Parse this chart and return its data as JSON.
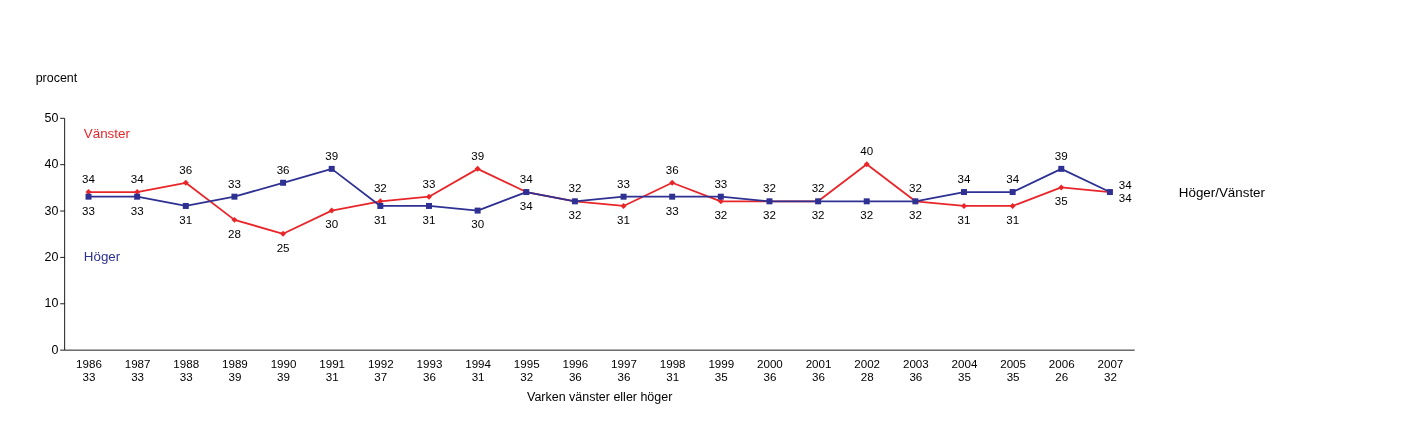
{
  "chart_data": {
    "type": "line",
    "ylabel": "procent",
    "xlabel": "Varken vänster eller höger",
    "categories": [
      "1986\n33",
      "1987\n33",
      "1988\n33",
      "1989\n39",
      "1990\n39",
      "1991\n31",
      "1992\n37",
      "1993\n36",
      "1994\n31",
      "1995\n32",
      "1996\n36",
      "1997\n36",
      "1998\n31",
      "1999\n35",
      "2000\n36",
      "2001\n36",
      "2002\n28",
      "2003\n36",
      "2004\n35",
      "2005\n35",
      "2006\n26",
      "2007\n32"
    ],
    "series": [
      {
        "name": "Vänster",
        "color": "#e8262a",
        "marker": "diamond",
        "values": [
          34,
          34,
          36,
          28,
          25,
          30,
          32,
          33,
          39,
          34,
          32,
          31,
          36,
          32,
          32,
          32,
          40,
          32,
          31,
          31,
          35,
          34
        ]
      },
      {
        "name": "Höger",
        "color": "#2e3192",
        "marker": "square",
        "values": [
          33,
          33,
          31,
          33,
          36,
          39,
          31,
          31,
          30,
          34,
          32,
          33,
          33,
          33,
          32,
          32,
          32,
          32,
          34,
          34,
          39,
          34
        ]
      }
    ],
    "annotations": [
      "Höger/Vänster"
    ],
    "ylim": [
      0,
      50
    ],
    "yticks": [
      0,
      10,
      20,
      30,
      40,
      50
    ],
    "data_labels": true,
    "grid": false,
    "legend": false,
    "line_style": "solid"
  }
}
